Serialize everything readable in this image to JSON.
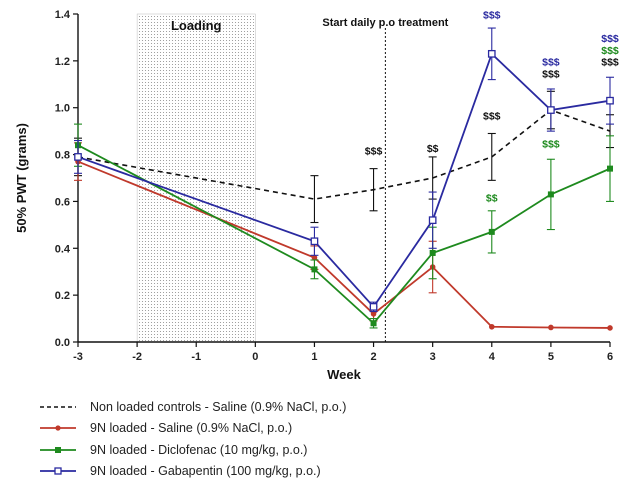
{
  "chart_data": {
    "type": "line",
    "xlabel": "Week",
    "ylabel": "50% PWT (grams)",
    "x": [
      -3,
      1,
      2,
      3,
      4,
      5,
      6
    ],
    "x_ticks": [
      "-3",
      "-2",
      "-1",
      "0",
      "1",
      "2",
      "3",
      "4",
      "5",
      "6"
    ],
    "y_ticks": [
      "0.0",
      "0.2",
      "0.4",
      "0.6",
      "0.8",
      "1.0",
      "1.2",
      "1.4"
    ],
    "xlim": [
      -3,
      6
    ],
    "ylim": [
      0,
      1.4
    ],
    "grid": false,
    "legend_position": "below",
    "annotations": {
      "loading_label": "Loading",
      "loading_range": [
        -2,
        0
      ],
      "treatment_label": "Start daily p.o treatment",
      "treatment_week": 2.2
    },
    "series": [
      {
        "name": "Non loaded controls - Saline (0.9% NaCl, p.o.)",
        "color": "#111111",
        "dashed": true,
        "marker": "none",
        "values": [
          0.79,
          0.61,
          0.65,
          0.7,
          0.79,
          0.99,
          0.9
        ],
        "errors": [
          0.08,
          0.1,
          0.09,
          0.09,
          0.1,
          0.08,
          0.07
        ]
      },
      {
        "name": "9N loaded - Saline (0.9% NaCl, p.o.)",
        "color": "#c0392b",
        "dashed": false,
        "marker": "circle",
        "values": [
          0.77,
          0.36,
          0.12,
          0.32,
          0.065,
          0.062,
          0.06
        ],
        "errors": [
          0.08,
          0.05,
          0.03,
          0.11,
          0.005,
          0.004,
          0.004
        ]
      },
      {
        "name": "9N loaded - Diclofenac (10 mg/kg, p.o.)",
        "color": "#1e8a1e",
        "dashed": false,
        "marker": "square",
        "values": [
          0.84,
          0.31,
          0.08,
          0.38,
          0.47,
          0.63,
          0.74
        ],
        "errors": [
          0.09,
          0.04,
          0.02,
          0.11,
          0.09,
          0.15,
          0.14
        ]
      },
      {
        "name": "9N loaded - Gabapentin (100 mg/kg, p.o.)",
        "color": "#2a2aa0",
        "dashed": false,
        "marker": "open-square",
        "values": [
          0.79,
          0.43,
          0.15,
          0.52,
          1.23,
          0.99,
          1.03
        ],
        "errors": [
          0.07,
          0.06,
          0.02,
          0.12,
          0.11,
          0.09,
          0.1
        ]
      }
    ],
    "significance": [
      {
        "text": "$$$",
        "week": 2,
        "y": 0.8,
        "color": "#111111"
      },
      {
        "text": "$$",
        "week": 3,
        "y": 0.81,
        "color": "#111111"
      },
      {
        "text": "$$$",
        "week": 4,
        "y": 0.95,
        "color": "#111111"
      },
      {
        "text": "$$",
        "week": 4,
        "y": 0.6,
        "color": "#1e8a1e"
      },
      {
        "text": "$$$",
        "week": 4,
        "y": 1.38,
        "color": "#2a2aa0"
      },
      {
        "text": "$$$",
        "week": 5,
        "y": 1.13,
        "color": "#111111"
      },
      {
        "text": "$$$",
        "week": 5,
        "y": 1.18,
        "color": "#2a2aa0"
      },
      {
        "text": "$$$",
        "week": 5,
        "y": 0.83,
        "color": "#1e8a1e"
      },
      {
        "text": "$$$",
        "week": 6,
        "y": 1.28,
        "color": "#2a2aa0"
      },
      {
        "text": "$$$",
        "week": 6,
        "y": 1.23,
        "color": "#1e8a1e"
      },
      {
        "text": "$$$",
        "week": 6,
        "y": 1.18,
        "color": "#111111"
      }
    ]
  }
}
